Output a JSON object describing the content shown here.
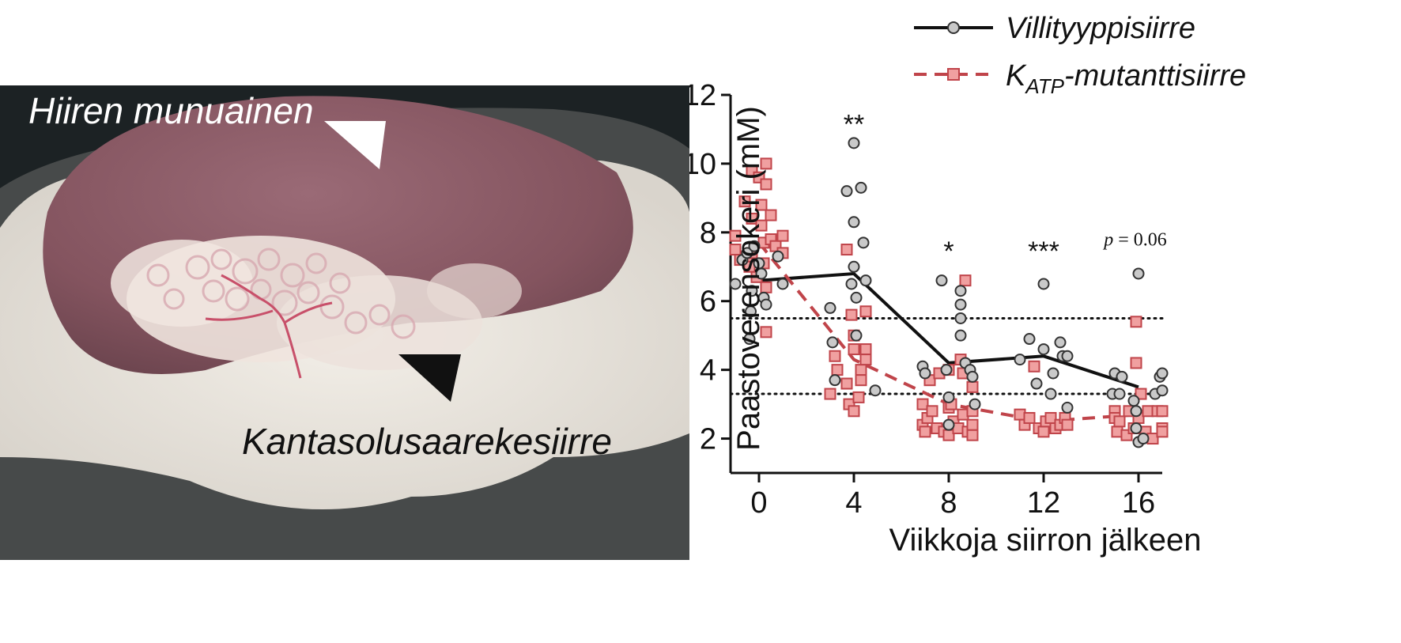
{
  "photo": {
    "label_kidney": "Hiiren munuainen",
    "label_graft": "Kantasolusaarekesiirre",
    "colors": {
      "background": "#1c2224",
      "kidney": "#8a5a66",
      "graft": "#ece7dd",
      "vessel": "#c8506a"
    }
  },
  "chart_data": {
    "type": "scatter",
    "title": "",
    "xlabel": "Viikkoja siirron jälkeen",
    "ylabel": "Paastoverensokeri (mM)",
    "xticks": [
      "0",
      "4",
      "8",
      "12",
      "16"
    ],
    "xtick_values": [
      0,
      4,
      8,
      12,
      16
    ],
    "yticks": [
      "2",
      "4",
      "6",
      "8",
      "10",
      "12"
    ],
    "ytick_values": [
      2,
      4,
      6,
      8,
      10,
      12
    ],
    "ylim": [
      1,
      12
    ],
    "xlim": [
      -1.2,
      17
    ],
    "reference_lines": [
      5.5,
      3.3
    ],
    "legend_position": "top",
    "series": [
      {
        "name": "Villityyppisiirre",
        "name_sub": "",
        "name_rest": "",
        "color": "#111111",
        "marker_fill": "#c9c9c9",
        "marker": "circle",
        "line_style": "solid",
        "mean": [
          [
            0,
            6.6
          ],
          [
            4,
            6.8
          ],
          [
            8,
            4.2
          ],
          [
            12,
            4.4
          ],
          [
            16,
            3.5
          ]
        ],
        "points": [
          [
            -1.0,
            6.5
          ],
          [
            -0.7,
            7.2
          ],
          [
            -0.5,
            7.4
          ],
          [
            -0.4,
            4.9
          ],
          [
            -0.35,
            5.7
          ],
          [
            -0.3,
            6.3
          ],
          [
            -0.2,
            7.6
          ],
          [
            0.0,
            7.1
          ],
          [
            0.1,
            6.8
          ],
          [
            0.2,
            6.1
          ],
          [
            0.3,
            5.9
          ],
          [
            0.8,
            7.3
          ],
          [
            1.0,
            6.5
          ],
          [
            3.0,
            5.8
          ],
          [
            3.1,
            4.8
          ],
          [
            3.2,
            3.7
          ],
          [
            3.7,
            9.2
          ],
          [
            3.9,
            6.5
          ],
          [
            4.0,
            10.6
          ],
          [
            4.0,
            8.3
          ],
          [
            4.0,
            7.0
          ],
          [
            4.1,
            6.1
          ],
          [
            4.1,
            5.0
          ],
          [
            4.3,
            9.3
          ],
          [
            4.4,
            7.7
          ],
          [
            4.5,
            6.6
          ],
          [
            4.9,
            3.4
          ],
          [
            6.9,
            4.1
          ],
          [
            7.0,
            3.9
          ],
          [
            7.7,
            6.6
          ],
          [
            7.9,
            4.0
          ],
          [
            8.0,
            3.2
          ],
          [
            8.0,
            2.4
          ],
          [
            8.5,
            6.3
          ],
          [
            8.5,
            5.9
          ],
          [
            8.5,
            5.5
          ],
          [
            8.5,
            5.0
          ],
          [
            8.7,
            4.2
          ],
          [
            8.9,
            4.0
          ],
          [
            9.0,
            3.8
          ],
          [
            9.1,
            3.0
          ],
          [
            11.0,
            4.3
          ],
          [
            11.4,
            4.9
          ],
          [
            11.7,
            3.6
          ],
          [
            12.0,
            4.6
          ],
          [
            12.0,
            6.5
          ],
          [
            12.3,
            3.3
          ],
          [
            12.4,
            3.9
          ],
          [
            12.7,
            4.8
          ],
          [
            12.8,
            4.4
          ],
          [
            13.0,
            4.4
          ],
          [
            13.0,
            2.9
          ],
          [
            14.9,
            3.3
          ],
          [
            15.0,
            3.9
          ],
          [
            15.2,
            3.3
          ],
          [
            15.3,
            3.8
          ],
          [
            15.8,
            3.1
          ],
          [
            15.9,
            2.3
          ],
          [
            15.9,
            2.8
          ],
          [
            16.0,
            1.9
          ],
          [
            16.0,
            6.8
          ],
          [
            16.2,
            2.0
          ],
          [
            16.7,
            3.3
          ],
          [
            16.9,
            3.8
          ],
          [
            17.0,
            3.9
          ],
          [
            17.0,
            3.4
          ]
        ]
      },
      {
        "name": "K",
        "name_sub": "ATP",
        "name_rest": "-mutanttisiirre",
        "color": "#c0444a",
        "marker_fill": "#f0a0a0",
        "marker": "square",
        "line_style": "dashed",
        "mean": [
          [
            0,
            7.7
          ],
          [
            4,
            4.3
          ],
          [
            8,
            3.0
          ],
          [
            12,
            2.5
          ],
          [
            16,
            2.7
          ]
        ],
        "points": [
          [
            -1.0,
            7.9
          ],
          [
            -1.0,
            7.5
          ],
          [
            -0.8,
            7.2
          ],
          [
            -0.6,
            8.9
          ],
          [
            -0.5,
            7.3
          ],
          [
            -0.4,
            7.0
          ],
          [
            -0.3,
            8.4
          ],
          [
            -0.3,
            9.8
          ],
          [
            -0.3,
            7.4
          ],
          [
            -0.1,
            6.7
          ],
          [
            0.0,
            9.6
          ],
          [
            0.1,
            8.2
          ],
          [
            0.1,
            8.8
          ],
          [
            0.2,
            7.7
          ],
          [
            0.2,
            7.1
          ],
          [
            0.3,
            10.0
          ],
          [
            0.3,
            9.4
          ],
          [
            0.3,
            6.4
          ],
          [
            0.3,
            5.1
          ],
          [
            0.5,
            8.5
          ],
          [
            0.5,
            7.8
          ],
          [
            0.7,
            7.6
          ],
          [
            1.0,
            7.9
          ],
          [
            1.0,
            7.4
          ],
          [
            3.0,
            3.3
          ],
          [
            3.2,
            4.4
          ],
          [
            3.3,
            4.0
          ],
          [
            3.7,
            7.5
          ],
          [
            3.7,
            3.6
          ],
          [
            3.8,
            3.0
          ],
          [
            3.9,
            5.6
          ],
          [
            4.0,
            5.0
          ],
          [
            4.0,
            4.6
          ],
          [
            4.0,
            2.8
          ],
          [
            4.2,
            3.2
          ],
          [
            4.3,
            4.0
          ],
          [
            4.3,
            3.7
          ],
          [
            4.5,
            5.7
          ],
          [
            4.5,
            4.6
          ],
          [
            4.5,
            4.3
          ],
          [
            6.9,
            3.0
          ],
          [
            6.9,
            2.4
          ],
          [
            7.0,
            2.2
          ],
          [
            7.1,
            2.6
          ],
          [
            7.2,
            3.7
          ],
          [
            7.3,
            2.8
          ],
          [
            7.5,
            2.3
          ],
          [
            7.6,
            3.9
          ],
          [
            7.8,
            2.2
          ],
          [
            8.0,
            4.0
          ],
          [
            8.0,
            2.9
          ],
          [
            8.0,
            2.1
          ],
          [
            8.1,
            3.0
          ],
          [
            8.2,
            2.5
          ],
          [
            8.4,
            2.3
          ],
          [
            8.5,
            4.3
          ],
          [
            8.6,
            3.9
          ],
          [
            8.6,
            2.7
          ],
          [
            8.7,
            6.6
          ],
          [
            8.8,
            2.2
          ],
          [
            9.0,
            2.8
          ],
          [
            9.0,
            2.1
          ],
          [
            9.0,
            3.5
          ],
          [
            9.0,
            2.4
          ],
          [
            11.0,
            2.7
          ],
          [
            11.2,
            2.4
          ],
          [
            11.4,
            2.6
          ],
          [
            11.6,
            4.1
          ],
          [
            11.8,
            2.3
          ],
          [
            12.0,
            2.2
          ],
          [
            12.1,
            2.5
          ],
          [
            12.3,
            2.6
          ],
          [
            12.5,
            2.3
          ],
          [
            12.7,
            2.4
          ],
          [
            12.9,
            2.6
          ],
          [
            13.0,
            2.4
          ],
          [
            15.0,
            2.8
          ],
          [
            15.0,
            2.6
          ],
          [
            15.1,
            2.2
          ],
          [
            15.2,
            2.5
          ],
          [
            15.5,
            2.1
          ],
          [
            15.6,
            2.8
          ],
          [
            15.8,
            2.3
          ],
          [
            15.9,
            5.4
          ],
          [
            15.9,
            4.2
          ],
          [
            16.0,
            2.6
          ],
          [
            16.1,
            3.3
          ],
          [
            16.3,
            2.2
          ],
          [
            16.4,
            2.8
          ],
          [
            16.6,
            2.0
          ],
          [
            16.8,
            2.8
          ],
          [
            17.0,
            2.8
          ],
          [
            17.0,
            2.3
          ],
          [
            17.0,
            2.2
          ]
        ]
      }
    ],
    "annotations": [
      {
        "x": 4,
        "y": 11.3,
        "text": "**"
      },
      {
        "x": 8,
        "y": 7.6,
        "text": "*"
      },
      {
        "x": 12,
        "y": 7.6,
        "text": "***"
      }
    ],
    "p_annotation": {
      "x": 16,
      "y": 7.8,
      "p": "p",
      "rest": " = 0.06"
    }
  }
}
